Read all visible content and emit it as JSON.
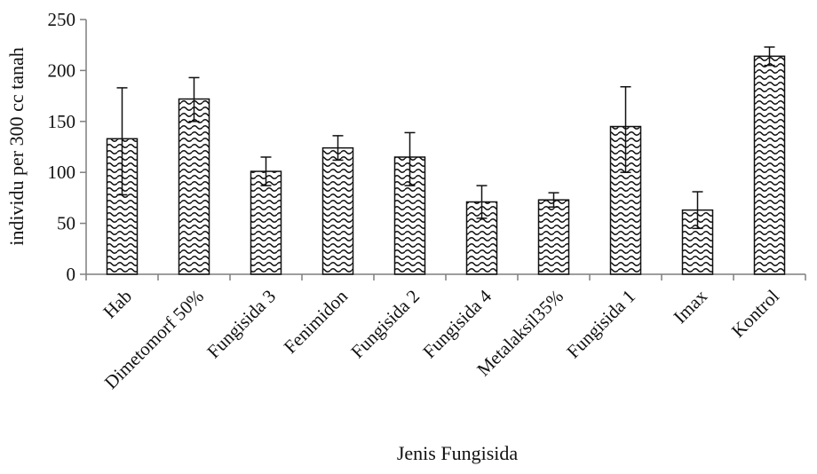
{
  "chart_data": {
    "type": "bar",
    "title": "",
    "xlabel": "Jenis Fungisida",
    "ylabel": "individu per 300 cc tanah",
    "ylim": [
      0,
      250
    ],
    "yticks": [
      0,
      50,
      100,
      150,
      200,
      250
    ],
    "grid": false,
    "categories": [
      "Hab",
      "Dimetomorf 50%",
      "Fungisida 3",
      "Fenimidon",
      "Fungisida 2",
      "Fungisida 4",
      "Metalaksil35%",
      "Fungisida 1",
      "Imax",
      "Kontrol"
    ],
    "values": [
      133,
      172,
      101,
      124,
      115,
      71,
      73,
      145,
      63,
      214
    ],
    "error_upper": [
      183,
      193,
      115,
      136,
      139,
      87,
      80,
      184,
      81,
      223
    ],
    "error_lower": [
      78,
      150,
      87,
      112,
      87,
      55,
      66,
      100,
      45,
      205
    ],
    "bar_pattern": "wavy-hatch",
    "colors": {
      "axis": "#7f7f7f",
      "bar_outline": "#111111",
      "pattern": "#111111"
    }
  }
}
